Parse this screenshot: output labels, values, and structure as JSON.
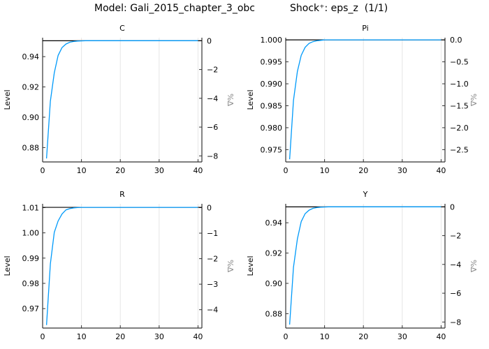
{
  "figure": {
    "model_title": "Model: Gali_2015_chapter_3_obc",
    "shock_title": "Shock⁺: eps_z  (1/1)"
  },
  "colors": {
    "series": "#009AFA",
    "steady_state": "#000000",
    "axis": "#333333",
    "grid": "#e6e6e6",
    "right_axis_label": "#888888"
  },
  "chart_data": [
    {
      "type": "line",
      "title": "C",
      "xlabel": "",
      "ylabel": "Level",
      "ylabel_right": "%Δ",
      "xlim": [
        0,
        41
      ],
      "ylim": [
        0.8705,
        0.9525
      ],
      "ylim_right": [
        -8.42,
        0.21
      ],
      "x_ticks": [
        0,
        10,
        20,
        30,
        40
      ],
      "y_ticks": [
        0.88,
        0.9,
        0.92,
        0.94
      ],
      "y_tick_labels": [
        "0.88",
        "0.90",
        "0.92",
        "0.94"
      ],
      "y_right_ticks": [
        0,
        -2,
        -4,
        -6,
        -8
      ],
      "y_right_tick_labels": [
        "0",
        "−2",
        "−4",
        "−6",
        "−8"
      ],
      "steady_state": 0.9505,
      "x": [
        1,
        2,
        3,
        4,
        5,
        6,
        7,
        8,
        9,
        10,
        11,
        12,
        13,
        14,
        15,
        16,
        17,
        18,
        19,
        20,
        21,
        22,
        23,
        24,
        25,
        26,
        27,
        28,
        29,
        30,
        31,
        32,
        33,
        34,
        35,
        36,
        37,
        38,
        39,
        40
      ],
      "values": [
        0.8728,
        0.9106,
        0.9293,
        0.9408,
        0.946,
        0.9483,
        0.9495,
        0.95,
        0.9503,
        0.9504,
        0.9505,
        0.9505,
        0.9505,
        0.9505,
        0.9505,
        0.9505,
        0.9505,
        0.9505,
        0.9505,
        0.9505,
        0.9505,
        0.9505,
        0.9505,
        0.9505,
        0.9505,
        0.9505,
        0.9505,
        0.9505,
        0.9505,
        0.9505,
        0.9505,
        0.9505,
        0.9505,
        0.9505,
        0.9505,
        0.9505,
        0.9505,
        0.9505,
        0.9505,
        0.9505
      ],
      "grid": true
    },
    {
      "type": "line",
      "title": "Pi",
      "xlabel": "",
      "ylabel": "Level",
      "ylabel_right": "%Δ",
      "xlim": [
        0,
        41
      ],
      "ylim": [
        0.9722,
        1.0005
      ],
      "ylim_right": [
        -2.78,
        0.05
      ],
      "x_ticks": [
        0,
        10,
        20,
        30,
        40
      ],
      "y_ticks": [
        0.975,
        0.98,
        0.985,
        0.99,
        0.995,
        1.0
      ],
      "y_tick_labels": [
        "0.975",
        "0.980",
        "0.985",
        "0.990",
        "0.995",
        "1.000"
      ],
      "y_right_ticks": [
        0.0,
        -0.5,
        -1.0,
        -1.5,
        -2.0,
        -2.5
      ],
      "y_right_tick_labels": [
        "0.0",
        "−0.5",
        "−1.0",
        "−1.5",
        "−2.0",
        "−2.5"
      ],
      "steady_state": 1.0,
      "x": [
        1,
        2,
        3,
        4,
        5,
        6,
        7,
        8,
        9,
        10,
        11,
        12,
        13,
        14,
        15,
        16,
        17,
        18,
        19,
        20,
        21,
        22,
        23,
        24,
        25,
        26,
        27,
        28,
        29,
        30,
        31,
        32,
        33,
        34,
        35,
        36,
        37,
        38,
        39,
        40
      ],
      "values": [
        0.9728,
        0.9862,
        0.9928,
        0.9965,
        0.9983,
        0.9992,
        0.9996,
        0.9998,
        0.9999,
        1.0,
        1.0,
        1.0,
        1.0,
        1.0,
        1.0,
        1.0,
        1.0,
        1.0,
        1.0,
        1.0,
        1.0,
        1.0,
        1.0,
        1.0,
        1.0,
        1.0,
        1.0,
        1.0,
        1.0,
        1.0,
        1.0,
        1.0,
        1.0,
        1.0,
        1.0,
        1.0,
        1.0,
        1.0,
        1.0,
        1.0
      ],
      "grid": true
    },
    {
      "type": "line",
      "title": "R",
      "xlabel": "",
      "ylabel": "Level",
      "ylabel_right": "%Δ",
      "xlim": [
        0,
        41
      ],
      "ylim": [
        0.9623,
        1.0115
      ],
      "ylim_right": [
        -4.72,
        0.15
      ],
      "x_ticks": [
        0,
        10,
        20,
        30,
        40
      ],
      "y_ticks": [
        0.97,
        0.98,
        0.99,
        1.0,
        1.01
      ],
      "y_tick_labels": [
        "0.97",
        "0.98",
        "0.99",
        "1.00",
        "1.01"
      ],
      "y_right_ticks": [
        0,
        -1,
        -2,
        -3,
        -4
      ],
      "y_right_tick_labels": [
        "0",
        "−1",
        "−2",
        "−3",
        "−4"
      ],
      "steady_state": 1.0101,
      "x": [
        1,
        2,
        3,
        4,
        5,
        6,
        7,
        8,
        9,
        10,
        11,
        12,
        13,
        14,
        15,
        16,
        17,
        18,
        19,
        20,
        21,
        22,
        23,
        24,
        25,
        26,
        27,
        28,
        29,
        30,
        31,
        32,
        33,
        34,
        35,
        36,
        37,
        38,
        39,
        40
      ],
      "values": [
        0.9635,
        0.9877,
        1.0002,
        1.0047,
        1.0075,
        1.0091,
        1.0096,
        1.0099,
        1.01,
        1.0101,
        1.0101,
        1.0101,
        1.0101,
        1.0101,
        1.0101,
        1.0101,
        1.0101,
        1.0101,
        1.0101,
        1.0101,
        1.0101,
        1.0101,
        1.0101,
        1.0101,
        1.0101,
        1.0101,
        1.0101,
        1.0101,
        1.0101,
        1.0101,
        1.0101,
        1.0101,
        1.0101,
        1.0101,
        1.0101,
        1.0101,
        1.0101,
        1.0101,
        1.0101,
        1.0101
      ],
      "grid": true
    },
    {
      "type": "line",
      "title": "Y",
      "xlabel": "",
      "ylabel": "Level",
      "ylabel_right": "%Δ",
      "xlim": [
        0,
        41
      ],
      "ylim": [
        0.8705,
        0.9525
      ],
      "ylim_right": [
        -8.42,
        0.21
      ],
      "x_ticks": [
        0,
        10,
        20,
        30,
        40
      ],
      "y_ticks": [
        0.88,
        0.9,
        0.92,
        0.94
      ],
      "y_tick_labels": [
        "0.88",
        "0.90",
        "0.92",
        "0.94"
      ],
      "y_right_ticks": [
        0,
        -2,
        -4,
        -6,
        -8
      ],
      "y_right_tick_labels": [
        "0",
        "−2",
        "−4",
        "−6",
        "−8"
      ],
      "steady_state": 0.9505,
      "x": [
        1,
        2,
        3,
        4,
        5,
        6,
        7,
        8,
        9,
        10,
        11,
        12,
        13,
        14,
        15,
        16,
        17,
        18,
        19,
        20,
        21,
        22,
        23,
        24,
        25,
        26,
        27,
        28,
        29,
        30,
        31,
        32,
        33,
        34,
        35,
        36,
        37,
        38,
        39,
        40
      ],
      "values": [
        0.8728,
        0.9106,
        0.9293,
        0.9408,
        0.946,
        0.9483,
        0.9495,
        0.95,
        0.9503,
        0.9504,
        0.9505,
        0.9505,
        0.9505,
        0.9505,
        0.9505,
        0.9505,
        0.9505,
        0.9505,
        0.9505,
        0.9505,
        0.9505,
        0.9505,
        0.9505,
        0.9505,
        0.9505,
        0.9505,
        0.9505,
        0.9505,
        0.9505,
        0.9505,
        0.9505,
        0.9505,
        0.9505,
        0.9505,
        0.9505,
        0.9505,
        0.9505,
        0.9505,
        0.9505,
        0.9505
      ],
      "grid": true
    }
  ]
}
